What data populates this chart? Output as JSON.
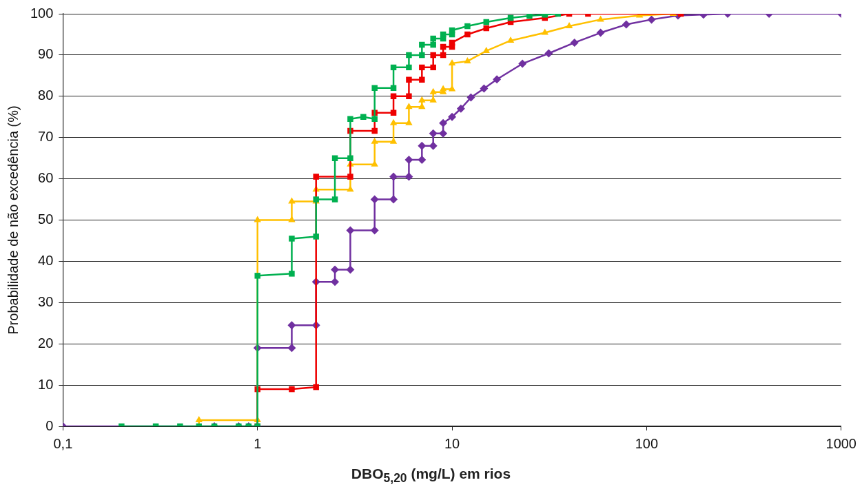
{
  "chart_data": {
    "type": "line",
    "xlabel": "DBO$_{5,20}$ (mg/L) em rios",
    "ylabel": "Probabilidade de não excedência (%)",
    "log": "x",
    "xlim": [
      0.1,
      1000
    ],
    "xticks": [
      {
        "value": 0.1,
        "label": "0,1"
      },
      1,
      10,
      100,
      1000
    ],
    "ylim": [
      0,
      100
    ],
    "yticks": [
      0,
      10,
      20,
      30,
      40,
      50,
      60,
      70,
      80,
      90,
      100
    ],
    "grid": "y",
    "legend": false,
    "line_style": "solid",
    "series": [
      {
        "color": "#7030a0",
        "marker": "diamond",
        "x": [
          0.1,
          0.6,
          0.8,
          0.9,
          1,
          1,
          1.5,
          1.5,
          2,
          2,
          2.5,
          2.5,
          3,
          3,
          4,
          4,
          5,
          5,
          6,
          6,
          7,
          7,
          8,
          8,
          9,
          9,
          10,
          11.1,
          12.5,
          14.6,
          17,
          23,
          31.4,
          42.6,
          58,
          78.6,
          106,
          145,
          196,
          261,
          426,
          1000
        ],
        "values": [
          0,
          0,
          0,
          0,
          0,
          19,
          19,
          24.5,
          24.5,
          35,
          35,
          38,
          38,
          47.5,
          47.5,
          55,
          55,
          60.5,
          60.5,
          64.6,
          64.6,
          68,
          68,
          71,
          71,
          73.5,
          75,
          77,
          79.7,
          81.9,
          84.1,
          87.9,
          90.4,
          93,
          95.4,
          97.4,
          98.6,
          99.6,
          99.8,
          100,
          100,
          100
        ]
      },
      {
        "color": "#ffc000",
        "marker": "triangle",
        "x": [
          0.5,
          0.5,
          1,
          1,
          1.5,
          1.5,
          2,
          2,
          3,
          3,
          4,
          4,
          5,
          5,
          6,
          6,
          7,
          7,
          8,
          8,
          9,
          9,
          10,
          10,
          12,
          15,
          20,
          30,
          40,
          58,
          92,
          137
        ],
        "values": [
          0,
          1.5,
          1.5,
          50,
          50,
          54.5,
          54.5,
          57.4,
          57.4,
          63.5,
          63.5,
          69,
          69,
          73.5,
          73.5,
          77.4,
          77.4,
          79,
          79,
          81,
          81,
          81.7,
          81.7,
          88,
          88.5,
          91,
          93.5,
          95.4,
          97,
          98.6,
          99.6,
          100
        ]
      },
      {
        "color": "#ee0000",
        "marker": "square",
        "x": [
          1,
          1,
          1.5,
          2,
          2,
          3,
          3,
          4,
          4,
          5,
          5,
          6,
          6,
          7,
          7,
          8,
          8,
          9,
          9,
          10,
          10,
          12,
          15,
          20,
          30,
          40,
          50,
          150
        ],
        "values": [
          0,
          9,
          9,
          9.5,
          60.5,
          60.5,
          71.6,
          71.6,
          76,
          76,
          80,
          80,
          84,
          84,
          87,
          87,
          90,
          90,
          92,
          92,
          93,
          95,
          96.5,
          98,
          99,
          100,
          100,
          100
        ]
      },
      {
        "color": "#00b050",
        "marker": "square",
        "x": [
          0.2,
          0.3,
          0.4,
          0.5,
          0.6,
          0.8,
          0.9,
          1,
          1,
          1.5,
          1.5,
          2,
          2,
          2.5,
          2.5,
          3,
          3,
          3.5,
          4,
          4,
          5,
          5,
          6,
          6,
          7,
          7,
          8,
          8,
          9,
          9,
          10,
          10,
          12,
          15,
          20,
          25,
          30,
          35
        ],
        "values": [
          0,
          0,
          0,
          0,
          0,
          0,
          0,
          0,
          36.5,
          37,
          45.5,
          46,
          55,
          55,
          65,
          65,
          74.5,
          75,
          74.5,
          82,
          82,
          87,
          87,
          90,
          90,
          92.5,
          92.5,
          94,
          94,
          95,
          95,
          96,
          97,
          98,
          99,
          99.5,
          99.8,
          100
        ]
      }
    ]
  }
}
